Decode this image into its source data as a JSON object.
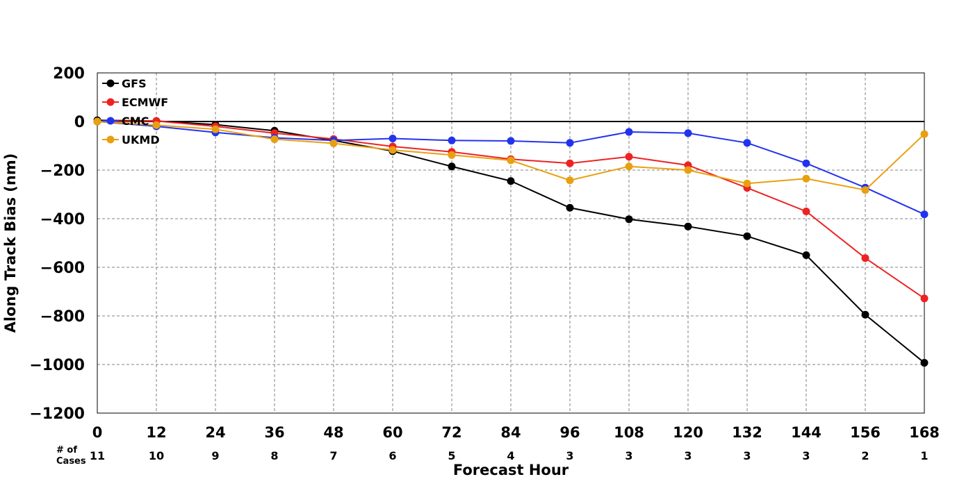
{
  "chart_data": {
    "type": "line",
    "title": "",
    "xlabel": "Forecast Hour",
    "ylabel": "Along Track Bias (nm)",
    "x": [
      0,
      12,
      24,
      36,
      48,
      60,
      72,
      84,
      96,
      108,
      120,
      132,
      144,
      156,
      168
    ],
    "xlim": [
      0,
      168
    ],
    "ylim": [
      -1200,
      200
    ],
    "y_ticks": [
      200,
      0,
      -200,
      -400,
      -600,
      -800,
      -1000,
      -1200
    ],
    "y_tick_labels": [
      "200",
      "0",
      "−200",
      "−400",
      "−600",
      "−800",
      "−1000",
      "−1200"
    ],
    "grid": true,
    "zero_line": true,
    "legend_position": "upper-left",
    "cases_title_line1": "# of",
    "cases_title_line2": "Cases",
    "num_cases": [
      11,
      10,
      9,
      8,
      7,
      6,
      5,
      4,
      3,
      3,
      3,
      3,
      3,
      2,
      1
    ],
    "series": [
      {
        "name": "GFS",
        "color": "#000000",
        "values": [
          5,
          2,
          -13,
          -38,
          -78,
          -122,
          -185,
          -245,
          -355,
          -402,
          -432,
          -472,
          -550,
          -795,
          -993
        ]
      },
      {
        "name": "ECMWF",
        "color": "#ee2222",
        "values": [
          0,
          2,
          -20,
          -48,
          -72,
          -103,
          -125,
          -155,
          -172,
          -145,
          -180,
          -273,
          -370,
          -562,
          -728
        ]
      },
      {
        "name": "CMC",
        "color": "#2233ee",
        "values": [
          0,
          -20,
          -45,
          -67,
          -78,
          -70,
          -78,
          -80,
          -88,
          -43,
          -48,
          -88,
          -172,
          -272,
          -382
        ]
      },
      {
        "name": "UKMD",
        "color": "#e8a010",
        "values": [
          0,
          -15,
          -32,
          -73,
          -90,
          -117,
          -138,
          -160,
          -242,
          -185,
          -200,
          -255,
          -235,
          -282,
          -52
        ]
      }
    ]
  }
}
